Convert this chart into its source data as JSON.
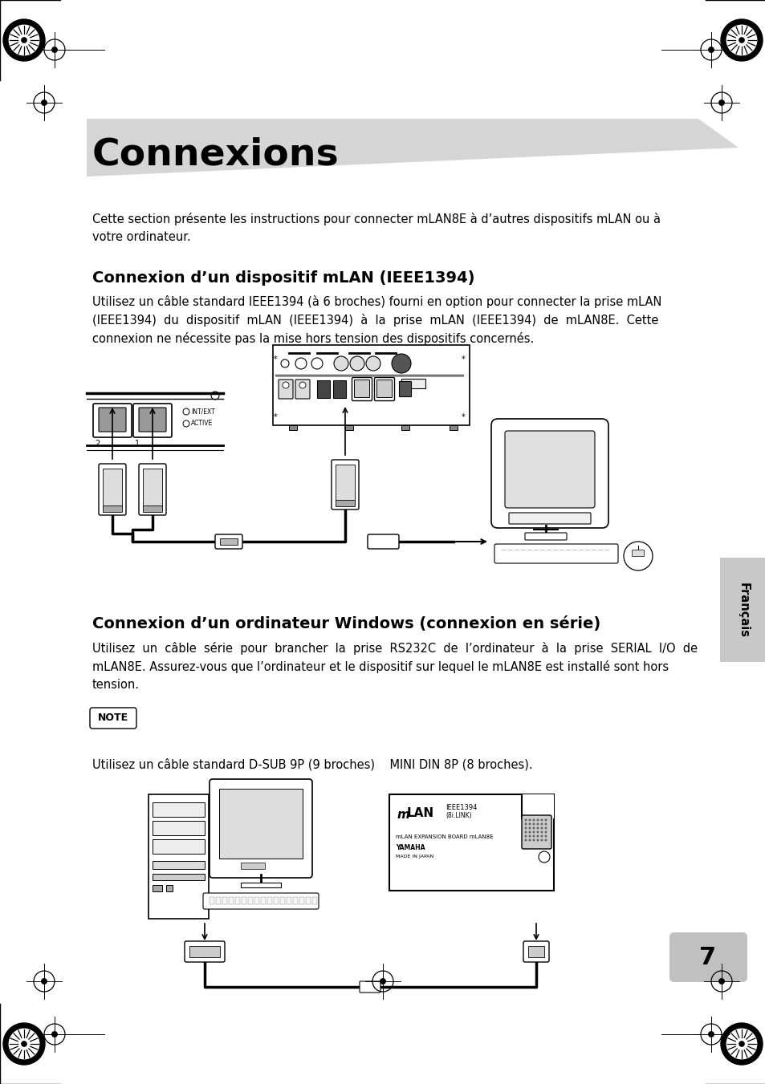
{
  "bg_color": "#ffffff",
  "page_width": 9.54,
  "page_height": 13.51,
  "title_text": "Connexions",
  "title_fontsize": 34,
  "triangle_color": "#d8d8d8",
  "body_text_1": "Cette section présente les instructions pour connecter mLAN8E à d’autres dispositifs mLAN ou à\nvotre ordinateur.",
  "body_text_1_fontsize": 10.5,
  "section1_title": "Connexion d’un dispositif mLAN (IEEE1394)",
  "section1_title_fontsize": 14,
  "section1_body": "Utilisez un câble standard IEEE1394 (à 6 broches) fourni en option pour connecter la prise mLAN\n(IEEE1394)  du  dispositif  mLAN  (IEEE1394)  à  la  prise  mLAN  (IEEE1394)  de  mLAN8E.  Cette\nconnexion ne nécessite pas la mise hors tension des dispositifs concernés.",
  "section1_body_fontsize": 10.5,
  "section2_title": "Connexion d’un ordinateur Windows (connexion en série)",
  "section2_title_fontsize": 14,
  "section2_body": "Utilisez  un  câble  série  pour  brancher  la  prise  RS232C  de  l’ordinateur  à  la  prise  SERIAL  I/O  de\nmLAN8E. Assurez-vous que l’ordinateur et le dispositif sur lequel le mLAN8E est installé sont hors\ntension.",
  "section2_body_fontsize": 10.5,
  "note_text": "NOTE",
  "note_fontsize": 9,
  "cable_note": "Utilisez un câble standard D-SUB 9P (9 broches)    MINI DIN 8P (8 broches).",
  "cable_note_fontsize": 10.5,
  "page_num": "7",
  "francais_text": "Français",
  "gray_tab_color": "#c0c0c0"
}
